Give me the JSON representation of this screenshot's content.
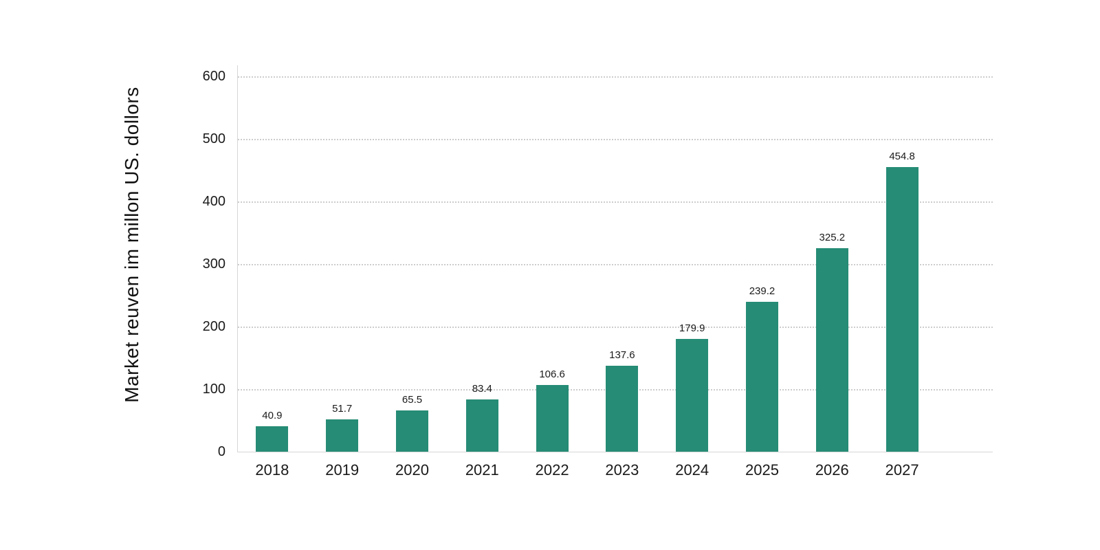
{
  "colors": {
    "bar": "#268c75",
    "gridline": "#cccccc",
    "axis_line": "#d6d6d6",
    "text": "#1a1a1a",
    "background": "#ffffff"
  },
  "chart_data": {
    "type": "bar",
    "title": "",
    "xlabel": "",
    "ylabel": "Market reuven im millon US. dollors",
    "categories": [
      "2018",
      "2019",
      "2020",
      "2021",
      "2022",
      "2023",
      "2024",
      "2025",
      "2026",
      "2027"
    ],
    "values": [
      40.9,
      51.7,
      65.5,
      83.4,
      106.6,
      137.6,
      179.9,
      239.2,
      325.2,
      454.8
    ],
    "value_labels": [
      "40.9",
      "51.7",
      "65.5",
      "83.4",
      "106.6",
      "137.6",
      "179.9",
      "239.2",
      "325.2",
      "454.8"
    ],
    "ylim": [
      0,
      600
    ],
    "yticks": [
      0,
      100,
      200,
      300,
      400,
      500,
      600
    ],
    "ytick_labels": [
      "0",
      "100",
      "200",
      "300",
      "400",
      "500",
      "600"
    ],
    "grid": "horizontal-dotted",
    "legend": "none"
  }
}
